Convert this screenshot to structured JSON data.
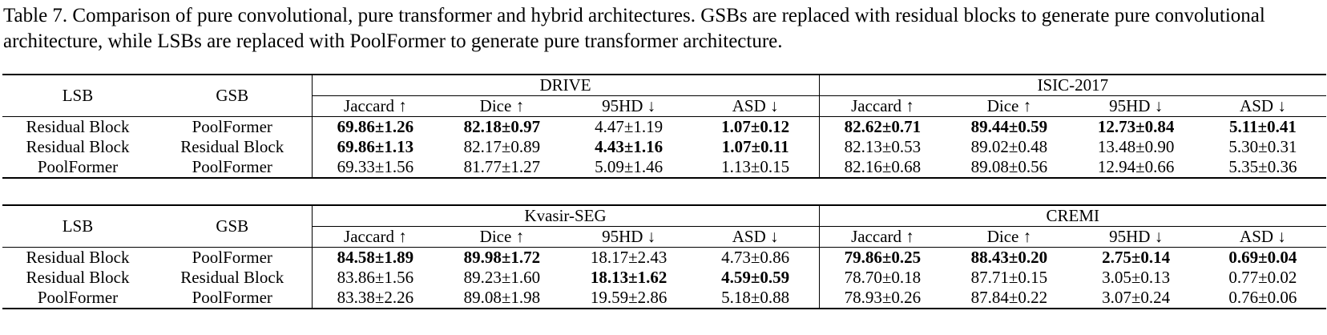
{
  "caption": "Table 7. Comparison of pure convolutional, pure transformer and hybrid architectures. GSBs are replaced with residual blocks to generate pure convolutional architecture, while LSBs are replaced with PoolFormer to generate pure transformer architecture.",
  "tables": [
    {
      "columns": [
        "LSB",
        "GSB"
      ],
      "groups": [
        {
          "name": "DRIVE",
          "metrics": [
            "Jaccard ↑",
            "Dice ↑",
            "95HD ↓",
            "ASD ↓"
          ]
        },
        {
          "name": "ISIC-2017",
          "metrics": [
            "Jaccard ↑",
            "Dice ↑",
            "95HD ↓",
            "ASD ↓"
          ]
        }
      ],
      "rows": [
        {
          "lsb": "Residual Block",
          "gsb": "PoolFormer",
          "cells": [
            {
              "text": "69.86±1.26",
              "bold": true
            },
            {
              "text": "82.18±0.97",
              "bold": true
            },
            {
              "text": "4.47±1.19",
              "bold": false
            },
            {
              "text": "1.07±0.12",
              "bold": true
            },
            {
              "text": "82.62±0.71",
              "bold": true
            },
            {
              "text": "89.44±0.59",
              "bold": true
            },
            {
              "text": "12.73±0.84",
              "bold": true
            },
            {
              "text": "5.11±0.41",
              "bold": true
            }
          ]
        },
        {
          "lsb": "Residual Block",
          "gsb": "Residual Block",
          "cells": [
            {
              "text": "69.86±1.13",
              "bold": true
            },
            {
              "text": "82.17±0.89",
              "bold": false
            },
            {
              "text": "4.43±1.16",
              "bold": true
            },
            {
              "text": "1.07±0.11",
              "bold": true
            },
            {
              "text": "82.13±0.53",
              "bold": false
            },
            {
              "text": "89.02±0.48",
              "bold": false
            },
            {
              "text": "13.48±0.90",
              "bold": false
            },
            {
              "text": "5.30±0.31",
              "bold": false
            }
          ]
        },
        {
          "lsb": "PoolFormer",
          "gsb": "PoolFormer",
          "cells": [
            {
              "text": "69.33±1.56",
              "bold": false
            },
            {
              "text": "81.77±1.27",
              "bold": false
            },
            {
              "text": "5.09±1.46",
              "bold": false
            },
            {
              "text": "1.13±0.15",
              "bold": false
            },
            {
              "text": "82.16±0.68",
              "bold": false
            },
            {
              "text": "89.08±0.56",
              "bold": false
            },
            {
              "text": "12.94±0.66",
              "bold": false
            },
            {
              "text": "5.35±0.36",
              "bold": false
            }
          ]
        }
      ]
    },
    {
      "columns": [
        "LSB",
        "GSB"
      ],
      "groups": [
        {
          "name": "Kvasir-SEG",
          "metrics": [
            "Jaccard ↑",
            "Dice ↑",
            "95HD ↓",
            "ASD ↓"
          ]
        },
        {
          "name": "CREMI",
          "metrics": [
            "Jaccard ↑",
            "Dice ↑",
            "95HD ↓",
            "ASD ↓"
          ]
        }
      ],
      "rows": [
        {
          "lsb": "Residual Block",
          "gsb": "PoolFormer",
          "cells": [
            {
              "text": "84.58±1.89",
              "bold": true
            },
            {
              "text": "89.98±1.72",
              "bold": true
            },
            {
              "text": "18.17±2.43",
              "bold": false
            },
            {
              "text": "4.73±0.86",
              "bold": false
            },
            {
              "text": "79.86±0.25",
              "bold": true
            },
            {
              "text": "88.43±0.20",
              "bold": true
            },
            {
              "text": "2.75±0.14",
              "bold": true
            },
            {
              "text": "0.69±0.04",
              "bold": true
            }
          ]
        },
        {
          "lsb": "Residual Block",
          "gsb": "Residual Block",
          "cells": [
            {
              "text": "83.86±1.56",
              "bold": false
            },
            {
              "text": "89.23±1.60",
              "bold": false
            },
            {
              "text": "18.13±1.62",
              "bold": true
            },
            {
              "text": "4.59±0.59",
              "bold": true
            },
            {
              "text": "78.70±0.18",
              "bold": false
            },
            {
              "text": "87.71±0.15",
              "bold": false
            },
            {
              "text": "3.05±0.13",
              "bold": false
            },
            {
              "text": "0.77±0.02",
              "bold": false
            }
          ]
        },
        {
          "lsb": "PoolFormer",
          "gsb": "PoolFormer",
          "cells": [
            {
              "text": "83.38±2.26",
              "bold": false
            },
            {
              "text": "89.08±1.98",
              "bold": false
            },
            {
              "text": "19.59±2.86",
              "bold": false
            },
            {
              "text": "5.18±0.88",
              "bold": false
            },
            {
              "text": "78.93±0.26",
              "bold": false
            },
            {
              "text": "87.84±0.22",
              "bold": false
            },
            {
              "text": "3.07±0.24",
              "bold": false
            },
            {
              "text": "0.76±0.06",
              "bold": false
            }
          ]
        }
      ]
    }
  ]
}
